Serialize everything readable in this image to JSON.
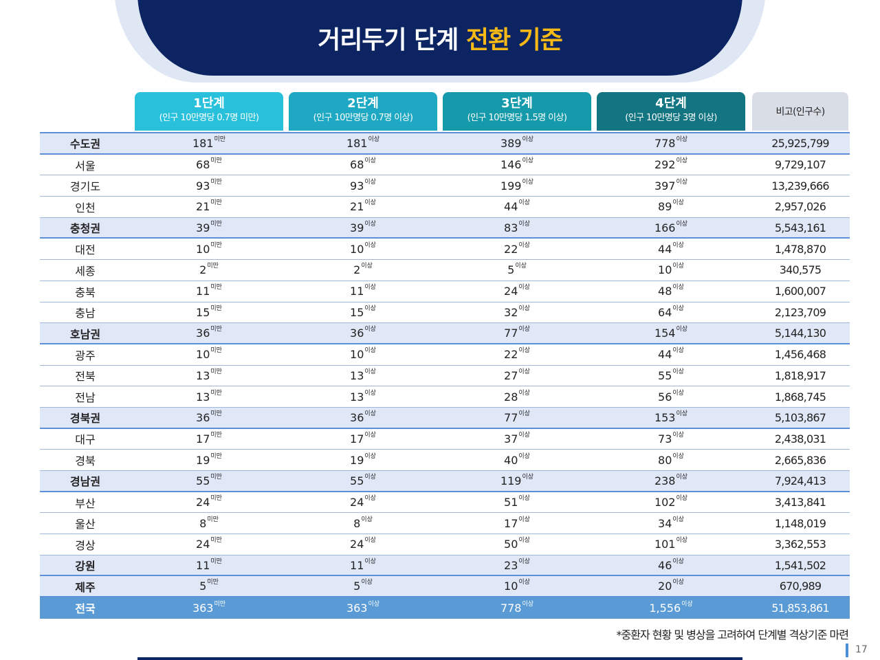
{
  "title": {
    "main": "거리두기 단계 ",
    "accent": "전환 기준"
  },
  "headers": [
    {
      "level": "1단계",
      "sub": "(인구 10만명당 0.7명 미만)"
    },
    {
      "level": "2단계",
      "sub": "(인구 10만명당 0.7명 이상)"
    },
    {
      "level": "3단계",
      "sub": "(인구 10만명당 1.5명 이상)"
    },
    {
      "level": "4단계",
      "sub": "(인구 10만명당 3명 이상)"
    }
  ],
  "note_header": "비고(인구수)",
  "suffix_below": "미만",
  "suffix_above": "이상",
  "rows": [
    {
      "name": "수도권",
      "type": "region",
      "s1": "181",
      "s2": "181",
      "s3": "389",
      "s4": "778",
      "pop": "25,925,799"
    },
    {
      "name": "서울",
      "type": "city",
      "s1": "68",
      "s2": "68",
      "s3": "146",
      "s4": "292",
      "pop": "9,729,107"
    },
    {
      "name": "경기도",
      "type": "city",
      "s1": "93",
      "s2": "93",
      "s3": "199",
      "s4": "397",
      "pop": "13,239,666"
    },
    {
      "name": "인천",
      "type": "city",
      "s1": "21",
      "s2": "21",
      "s3": "44",
      "s4": "89",
      "pop": "2,957,026"
    },
    {
      "name": "충청권",
      "type": "region",
      "s1": "39",
      "s2": "39",
      "s3": "83",
      "s4": "166",
      "pop": "5,543,161"
    },
    {
      "name": "대전",
      "type": "city",
      "s1": "10",
      "s2": "10",
      "s3": "22",
      "s4": "44",
      "pop": "1,478,870"
    },
    {
      "name": "세종",
      "type": "city",
      "s1": "2",
      "s2": "2",
      "s3": "5",
      "s4": "10",
      "pop": "340,575"
    },
    {
      "name": "충북",
      "type": "city",
      "s1": "11",
      "s2": "11",
      "s3": "24",
      "s4": "48",
      "pop": "1,600,007"
    },
    {
      "name": "충남",
      "type": "city",
      "s1": "15",
      "s2": "15",
      "s3": "32",
      "s4": "64",
      "pop": "2,123,709"
    },
    {
      "name": "호남권",
      "type": "region",
      "s1": "36",
      "s2": "36",
      "s3": "77",
      "s4": "154",
      "pop": "5,144,130"
    },
    {
      "name": "광주",
      "type": "city",
      "s1": "10",
      "s2": "10",
      "s3": "22",
      "s4": "44",
      "pop": "1,456,468"
    },
    {
      "name": "전북",
      "type": "city",
      "s1": "13",
      "s2": "13",
      "s3": "27",
      "s4": "55",
      "pop": "1,818,917"
    },
    {
      "name": "전남",
      "type": "city",
      "s1": "13",
      "s2": "13",
      "s3": "28",
      "s4": "56",
      "pop": "1,868,745"
    },
    {
      "name": "경북권",
      "type": "region",
      "s1": "36",
      "s2": "36",
      "s3": "77",
      "s4": "153",
      "pop": "5,103,867"
    },
    {
      "name": "대구",
      "type": "city",
      "s1": "17",
      "s2": "17",
      "s3": "37",
      "s4": "73",
      "pop": "2,438,031"
    },
    {
      "name": "경북",
      "type": "city",
      "s1": "19",
      "s2": "19",
      "s3": "40",
      "s4": "80",
      "pop": "2,665,836"
    },
    {
      "name": "경남권",
      "type": "region",
      "s1": "55",
      "s2": "55",
      "s3": "119",
      "s4": "238",
      "pop": "7,924,413"
    },
    {
      "name": "부산",
      "type": "city",
      "s1": "24",
      "s2": "24",
      "s3": "51",
      "s4": "102",
      "pop": "3,413,841"
    },
    {
      "name": "울산",
      "type": "city",
      "s1": "8",
      "s2": "8",
      "s3": "17",
      "s4": "34",
      "pop": "1,148,019"
    },
    {
      "name": "경상",
      "type": "city",
      "s1": "24",
      "s2": "24",
      "s3": "50",
      "s4": "101",
      "pop": "3,362,553"
    },
    {
      "name": "강원",
      "type": "region",
      "s1": "11",
      "s2": "11",
      "s3": "23",
      "s4": "46",
      "pop": "1,541,502"
    },
    {
      "name": "제주",
      "type": "region",
      "s1": "5",
      "s2": "5",
      "s3": "10",
      "s4": "20",
      "pop": "670,989"
    },
    {
      "name": "전국",
      "type": "total",
      "s1": "363",
      "s2": "363",
      "s3": "778",
      "s4": "1,556",
      "pop": "51,853,861"
    }
  ],
  "footnote": "*중환자 현황 및 병상을 고려하여 단계별 격상기준 마련",
  "page_number": "17"
}
